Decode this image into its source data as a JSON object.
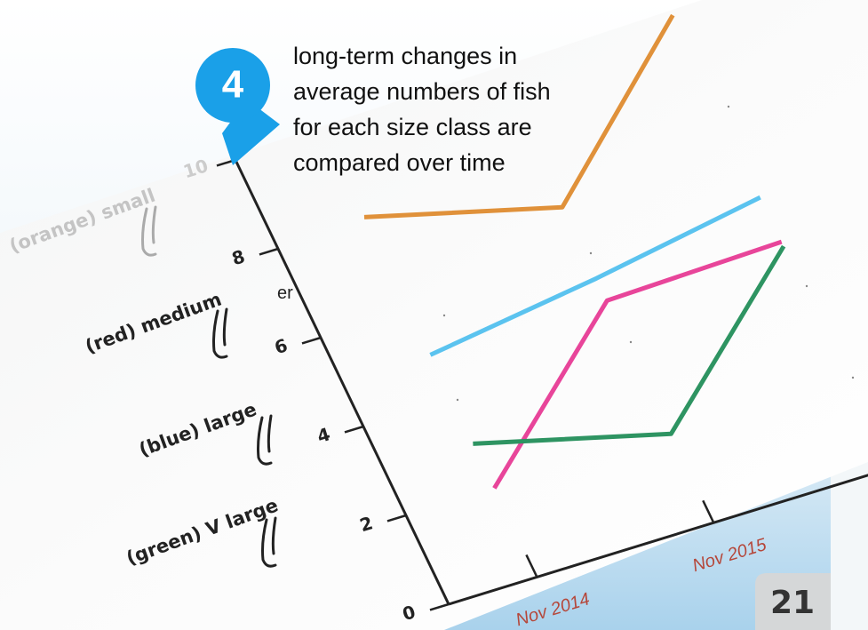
{
  "callout": {
    "number": "4",
    "lines": [
      "long-term changes in",
      "average numbers of fish",
      "for each size class are",
      "compared over time"
    ]
  },
  "fragment": "er",
  "page_number": "21",
  "chart_data": {
    "type": "line",
    "categories": [
      "Nov 2014",
      "Nov 2015",
      null
    ],
    "series": [
      {
        "name": "(orange) small",
        "color": "#e0913a",
        "values": [
          8.1,
          7.1,
          10.2
        ]
      },
      {
        "name": "(red) medium",
        "color": "#e8459a",
        "values": [
          2.0,
          5.0,
          5.1
        ]
      },
      {
        "name": "(blue) large",
        "color": "#5bc3ef",
        "values": [
          5.0,
          5.5,
          6.1
        ]
      },
      {
        "name": "(green) V large",
        "color": "#2e9462",
        "values": [
          3.0,
          2.0,
          5.0
        ]
      }
    ],
    "ylim": [
      0,
      10
    ],
    "yticks": [
      0,
      2,
      4,
      6,
      8,
      10
    ]
  }
}
